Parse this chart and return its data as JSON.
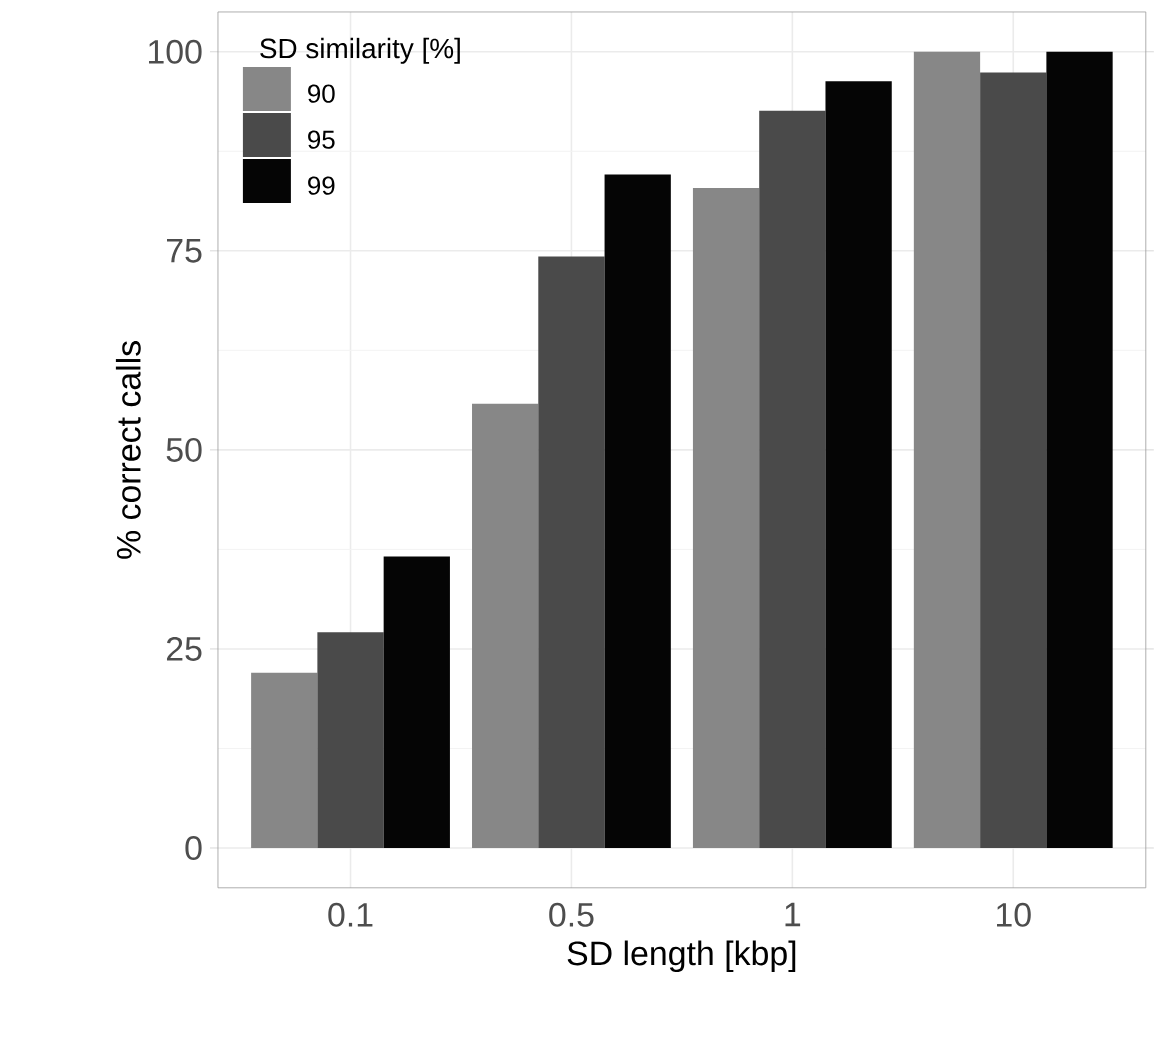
{
  "chart_data": {
    "type": "bar",
    "xlabel": "SD length [kbp]",
    "ylabel": "% correct calls",
    "legend_title": "SD similarity [%]",
    "categories": [
      "0.1",
      "0.5",
      "1",
      "10"
    ],
    "series": [
      {
        "name": "90",
        "color": "#878787",
        "values": [
          22.0,
          55.8,
          82.9,
          100
        ]
      },
      {
        "name": "95",
        "color": "#4a4a4a",
        "values": [
          27.1,
          74.3,
          92.6,
          97.4
        ]
      },
      {
        "name": "99",
        "color": "#050505",
        "values": [
          36.6,
          84.6,
          96.3,
          100
        ]
      }
    ],
    "ylim": [
      -5,
      105
    ],
    "yticks": [
      0,
      25,
      50,
      75,
      100
    ],
    "grid": true,
    "legend": "top left"
  }
}
